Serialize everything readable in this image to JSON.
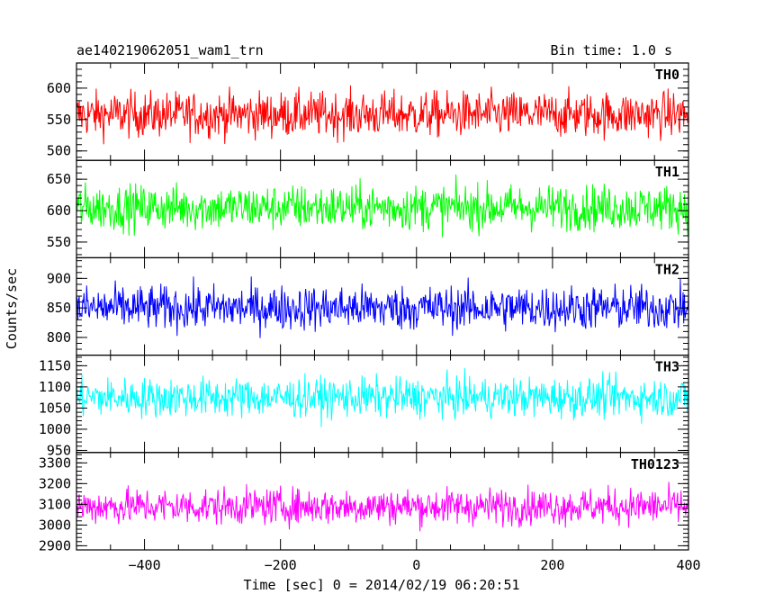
{
  "chart_data": {
    "type": "line",
    "title": "ae140219062051_wam1_trn",
    "bin_time_label": "Bin time: 1.0 s",
    "ylabel": "Counts/sec",
    "xlabel": "Time [sec] 0 = 2014/02/19 06:20:51",
    "xlim": [
      -500,
      400
    ],
    "x_ticks": [
      -400,
      -200,
      0,
      200,
      400
    ],
    "x_tick_labels": [
      "−400",
      "−200",
      "0",
      "200",
      "400"
    ],
    "panels": [
      {
        "name": "TH0",
        "color": "#ff0000",
        "ylim": [
          485,
          640
        ],
        "yticks": [
          500,
          550,
          600
        ],
        "ytick_labels": [
          "500",
          "550",
          "600"
        ],
        "mean": 558,
        "spread": 62,
        "amp_min": 500,
        "amp_max": 640
      },
      {
        "name": "TH1",
        "color": "#00ff00",
        "ylim": [
          525,
          680
        ],
        "yticks": [
          550,
          600,
          650
        ],
        "ytick_labels": [
          "550",
          "600",
          "650"
        ],
        "mean": 605,
        "spread": 62,
        "amp_min": 535,
        "amp_max": 680
      },
      {
        "name": "TH2",
        "color": "#0000ff",
        "ylim": [
          770,
          935
        ],
        "yticks": [
          800,
          850,
          900
        ],
        "ytick_labels": [
          "800",
          "850",
          "900"
        ],
        "mean": 850,
        "spread": 65,
        "amp_min": 772,
        "amp_max": 935
      },
      {
        "name": "TH3",
        "color": "#00ffff",
        "ylim": [
          945,
          1175
        ],
        "yticks": [
          950,
          1000,
          1050,
          1100,
          1150
        ],
        "ytick_labels": [
          "950",
          "1000",
          "1050",
          "1100",
          "1150"
        ],
        "mean": 1075,
        "spread": 80,
        "amp_min": 945,
        "amp_max": 1175
      },
      {
        "name": "TH0123",
        "color": "#ff00ff",
        "ylim": [
          2880,
          3350
        ],
        "yticks": [
          2900,
          3000,
          3100,
          3200,
          3300
        ],
        "ytick_labels": [
          "2900",
          "3000",
          "3100",
          "3200",
          "3300"
        ],
        "mean": 3090,
        "spread": 150,
        "amp_min": 2890,
        "amp_max": 3330
      }
    ]
  }
}
